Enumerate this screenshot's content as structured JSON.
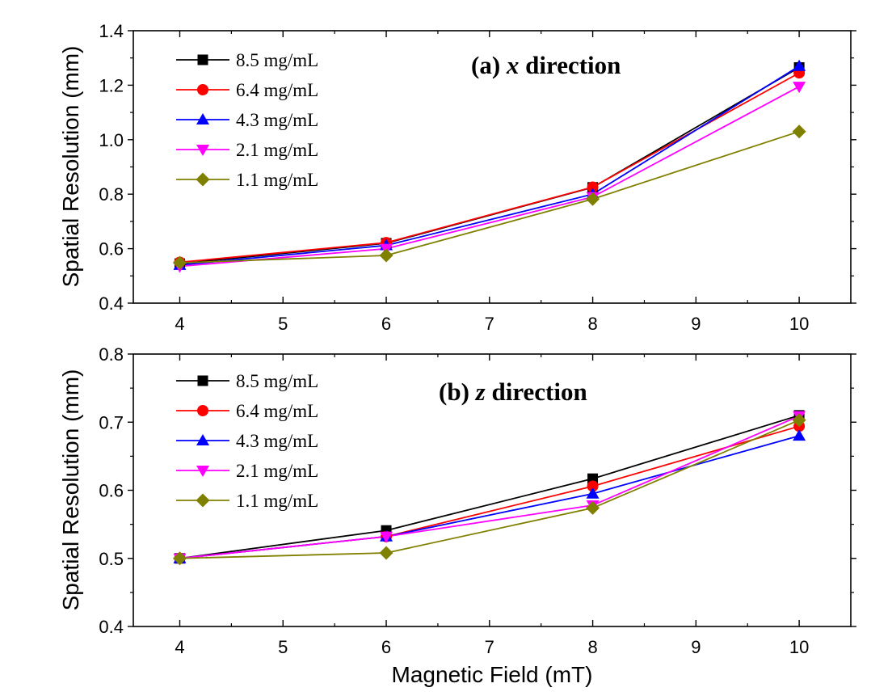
{
  "chart_data": [
    {
      "type": "line",
      "title_prefix": "(a) ",
      "title_var": "x",
      "title_suffix": " direction",
      "xlabel": "",
      "ylabel": "Spatial Resolution (mm)",
      "x": [
        4,
        6,
        8,
        10
      ],
      "xlim": [
        3.55,
        10.5
      ],
      "ylim": [
        0.4,
        1.4
      ],
      "xticks": [
        4,
        5,
        6,
        7,
        8,
        9,
        10
      ],
      "yticks": [
        "0.4",
        "0.6",
        "0.8",
        "1.0",
        "1.2",
        "1.4"
      ],
      "legend_position": "top-left",
      "series": [
        {
          "name": "8.5 mg/mL",
          "color": "#000000",
          "marker": "square",
          "values": [
            0.545,
            0.62,
            0.825,
            1.265
          ]
        },
        {
          "name": "6.4 mg/mL",
          "color": "#ff0000",
          "marker": "circle",
          "values": [
            0.55,
            0.622,
            0.826,
            1.245
          ]
        },
        {
          "name": "4.3 mg/mL",
          "color": "#0000ff",
          "marker": "triangle-up",
          "values": [
            0.54,
            0.612,
            0.8,
            1.27
          ]
        },
        {
          "name": "2.1 mg/mL",
          "color": "#ff00ff",
          "marker": "triangle-down",
          "values": [
            0.535,
            0.6,
            0.79,
            1.195
          ]
        },
        {
          "name": "1.1 mg/mL",
          "color": "#808000",
          "marker": "diamond",
          "values": [
            0.548,
            0.575,
            0.782,
            1.03
          ]
        }
      ]
    },
    {
      "type": "line",
      "title_prefix": "(b) ",
      "title_var": "z",
      "title_suffix": " direction",
      "xlabel": "Magnetic Field (mT)",
      "ylabel": "Spatial Resolution (mm)",
      "x": [
        4,
        6,
        8,
        10
      ],
      "xlim": [
        3.55,
        10.5
      ],
      "ylim": [
        0.4,
        0.8
      ],
      "xticks": [
        4,
        5,
        6,
        7,
        8,
        9,
        10
      ],
      "yticks": [
        "0.4",
        "0.5",
        "0.6",
        "0.7",
        "0.8"
      ],
      "legend_position": "top-left",
      "series": [
        {
          "name": "8.5 mg/mL",
          "color": "#000000",
          "marker": "square",
          "values": [
            0.5,
            0.541,
            0.617,
            0.71
          ]
        },
        {
          "name": "6.4 mg/mL",
          "color": "#ff0000",
          "marker": "circle",
          "values": [
            0.5,
            0.532,
            0.606,
            0.694
          ]
        },
        {
          "name": "4.3 mg/mL",
          "color": "#0000ff",
          "marker": "triangle-up",
          "values": [
            0.5,
            0.532,
            0.595,
            0.68
          ]
        },
        {
          "name": "2.1 mg/mL",
          "color": "#ff00ff",
          "marker": "triangle-down",
          "values": [
            0.5,
            0.532,
            0.578,
            0.709
          ]
        },
        {
          "name": "1.1 mg/mL",
          "color": "#808000",
          "marker": "diamond",
          "values": [
            0.5,
            0.508,
            0.574,
            0.703
          ]
        }
      ]
    }
  ]
}
